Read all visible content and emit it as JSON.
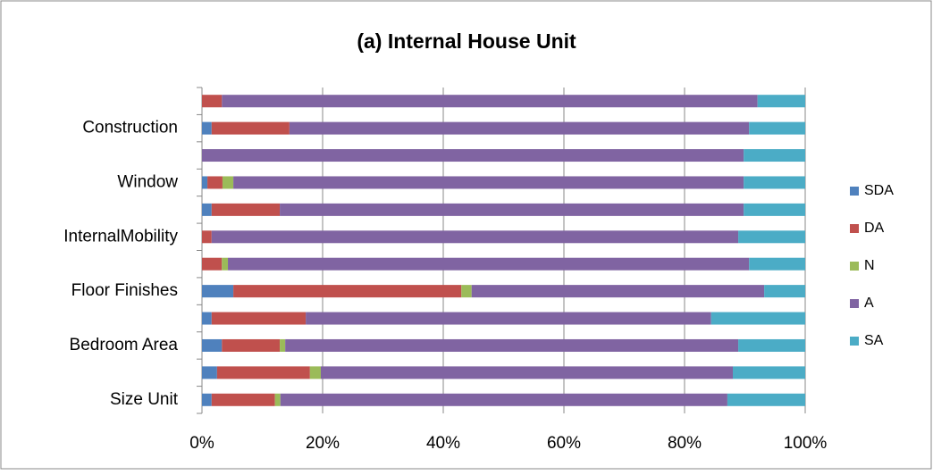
{
  "chart_data": {
    "type": "stacked-barh",
    "title": "(a) Internal House Unit",
    "categories": [
      "Size Unit",
      null,
      "Bedroom Area",
      null,
      "Floor Finishes",
      null,
      "InternalMobility",
      null,
      "Window",
      null,
      "Construction",
      null
    ],
    "series": [
      {
        "name": "SDA",
        "color": "#4f81bd",
        "values": [
          1.6,
          2.5,
          3.3,
          1.6,
          5.2,
          0,
          0,
          1.6,
          0.9,
          0,
          1.6,
          0
        ]
      },
      {
        "name": "DA",
        "color": "#c0504d",
        "values": [
          10.5,
          15.4,
          9.6,
          15.6,
          37.8,
          3.3,
          1.6,
          11.3,
          2.5,
          0,
          12.9,
          3.3
        ]
      },
      {
        "name": "N",
        "color": "#9bbb59",
        "values": [
          0.9,
          1.8,
          0.9,
          0,
          1.7,
          1.0,
          0,
          0,
          1.8,
          0,
          0,
          0
        ]
      },
      {
        "name": "A",
        "color": "#8064a2",
        "values": [
          74.1,
          68.3,
          75.1,
          67.2,
          48.5,
          86.4,
          87.3,
          76.9,
          84.6,
          89.8,
          76.2,
          88.8
        ]
      },
      {
        "name": "SA",
        "color": "#4bacc6",
        "values": [
          12.9,
          12.0,
          11.1,
          15.6,
          6.8,
          9.3,
          11.1,
          10.2,
          10.2,
          10.2,
          9.3,
          7.9
        ]
      }
    ],
    "xlim": [
      0,
      100
    ],
    "xticks": [
      {
        "value": 0,
        "label": "0%"
      },
      {
        "value": 20,
        "label": "20%"
      },
      {
        "value": 40,
        "label": "40%"
      },
      {
        "value": 60,
        "label": "60%"
      },
      {
        "value": 80,
        "label": "80%"
      },
      {
        "value": 100,
        "label": "100%"
      }
    ],
    "grid": true,
    "legend": "right"
  }
}
